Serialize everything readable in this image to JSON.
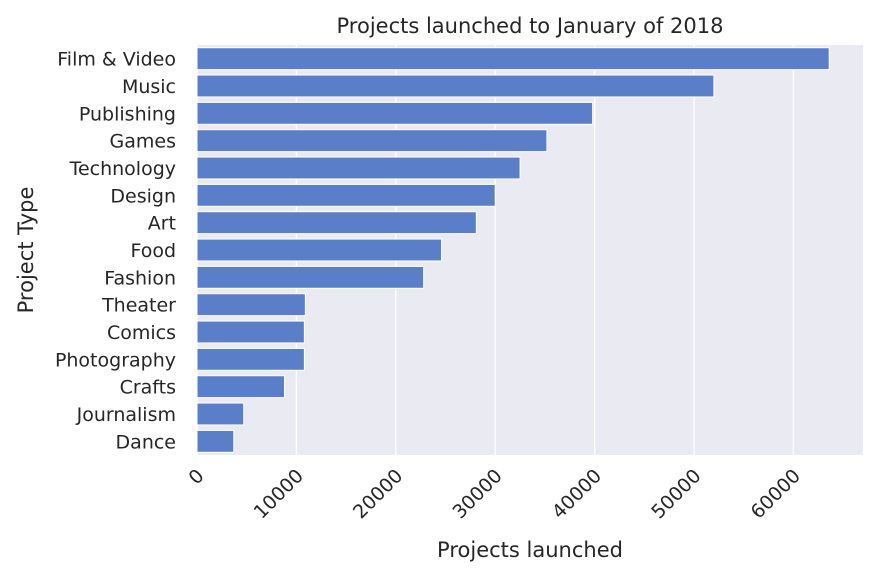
{
  "chart_data": {
    "type": "bar",
    "orientation": "horizontal",
    "title": "Projects launched to January of 2018",
    "xlabel": "Projects launched",
    "ylabel": "Project Type",
    "categories": [
      "Film & Video",
      "Music",
      "Publishing",
      "Games",
      "Technology",
      "Design",
      "Art",
      "Food",
      "Fashion",
      "Theater",
      "Comics",
      "Photography",
      "Crafts",
      "Journalism",
      "Dance"
    ],
    "values": [
      63600,
      52000,
      39800,
      35200,
      32500,
      30000,
      28100,
      24600,
      22800,
      10900,
      10800,
      10800,
      8800,
      4700,
      3700
    ],
    "x_ticks": [
      0,
      10000,
      20000,
      30000,
      40000,
      50000,
      60000
    ],
    "xlim": [
      0,
      67000
    ],
    "grid": true,
    "colors": {
      "bar": "#5a7ec8",
      "plot_bg": "#eaeaf2",
      "grid": "#ffffff",
      "text": "#262626"
    }
  }
}
